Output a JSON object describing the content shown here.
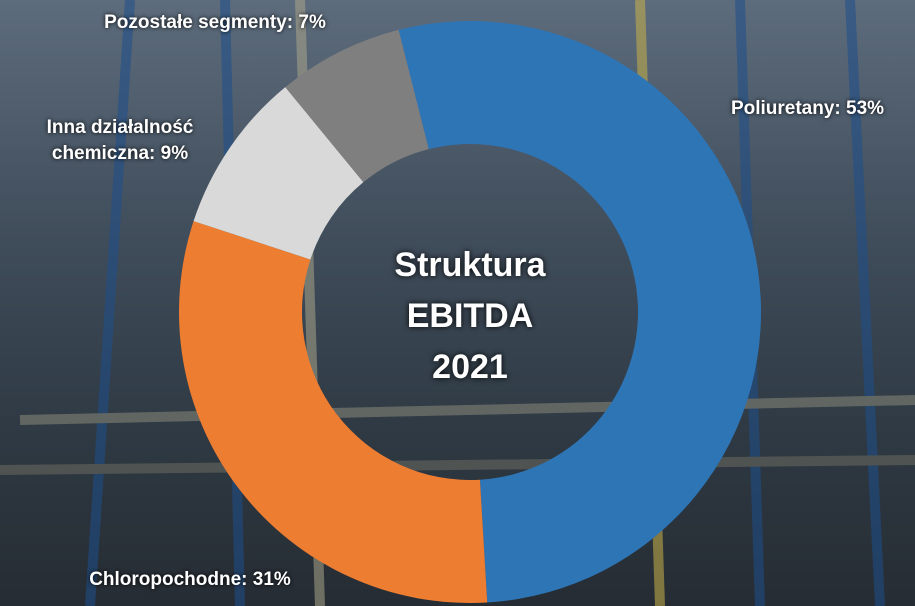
{
  "chart_data": {
    "type": "donut",
    "title": "Struktura EBITDA 2021",
    "values": [
      53,
      31,
      9,
      7
    ],
    "value_labels": [
      "Poliuretany: 53%",
      "Chloropochodne: 31%",
      "Inna działalność chemiczna: 9%",
      "Pozostałe segmenty: 7%"
    ],
    "colors": [
      "#2e75b6",
      "#ed7d31",
      "#d9d9d9",
      "#7f7f7f"
    ]
  }
}
